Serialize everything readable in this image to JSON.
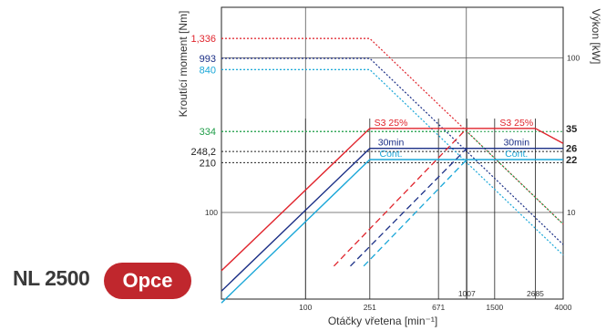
{
  "header": {
    "model": "NL 2500",
    "option_label": "Opce"
  },
  "colors": {
    "red": "#e0242c",
    "navy": "#1b2f86",
    "blue": "#2a5fb0",
    "cyan": "#1aa7d8",
    "green": "#1f9d48",
    "grid": "#222222",
    "badge": "#c0272d"
  },
  "chart_data": {
    "type": "line",
    "xlabel": "Otáčky vřetena [min⁻¹]",
    "ylabel_left": "Kroutící moment [Nm]",
    "ylabel_right": "Výkon [kW]",
    "x_scale": "log",
    "xlim": [
      30,
      4000
    ],
    "y_left_scale": "log",
    "y_right_scale": "log",
    "x_ticks": [
      100,
      251,
      671,
      1007,
      1500,
      2685,
      4000
    ],
    "y_left_ticks": [
      100
    ],
    "y_right_ticks": [
      10,
      100
    ],
    "torque_levels": [
      {
        "label": "1,336",
        "value": 1336,
        "color": "red"
      },
      {
        "label": "993",
        "value": 993,
        "color": "navy"
      },
      {
        "label": "840",
        "value": 840,
        "color": "cyan"
      },
      {
        "label": "334",
        "value": 334,
        "color": "green"
      },
      {
        "label": "248,2",
        "value": 248.2,
        "color": "black"
      },
      {
        "label": "210",
        "value": 210,
        "color": "black"
      }
    ],
    "power_levels": [
      {
        "label": "35",
        "value": 35
      },
      {
        "label": "26",
        "value": 26
      },
      {
        "label": "22",
        "value": 22
      }
    ],
    "torque_series": [
      {
        "color": "red",
        "points": [
          [
            30,
            1336
          ],
          [
            251,
            1336
          ],
          [
            671,
            500
          ],
          [
            1007,
            334
          ],
          [
            4000,
            84
          ]
        ]
      },
      {
        "color": "navy",
        "points": [
          [
            30,
            993
          ],
          [
            251,
            993
          ],
          [
            1007,
            248.2
          ],
          [
            4000,
            62
          ]
        ]
      },
      {
        "color": "cyan",
        "points": [
          [
            30,
            840
          ],
          [
            251,
            840
          ],
          [
            1007,
            210
          ],
          [
            4000,
            53
          ]
        ]
      },
      {
        "color": "green",
        "points": [
          [
            30,
            334
          ],
          [
            1007,
            334
          ],
          [
            4000,
            84
          ]
        ]
      }
    ],
    "power_series": [
      {
        "name": "S3 25%",
        "color": "red",
        "points": [
          [
            30,
            4.2
          ],
          [
            251,
            35
          ],
          [
            671,
            35
          ],
          [
            1007,
            35
          ],
          [
            2685,
            35
          ],
          [
            4000,
            28
          ]
        ]
      },
      {
        "name": "30min",
        "color": "navy",
        "points": [
          [
            30,
            3.1
          ],
          [
            251,
            26
          ],
          [
            4000,
            26
          ]
        ]
      },
      {
        "name": "Cont.",
        "color": "cyan",
        "points": [
          [
            30,
            2.6
          ],
          [
            251,
            22
          ],
          [
            4000,
            22
          ]
        ]
      }
    ],
    "dashed_power_series": [
      {
        "color": "red",
        "points": [
          [
            150,
            4.5
          ],
          [
            1007,
            35
          ]
        ]
      },
      {
        "color": "navy",
        "points": [
          [
            190,
            4.5
          ],
          [
            1007,
            26
          ]
        ]
      },
      {
        "color": "cyan",
        "points": [
          [
            230,
            4.5
          ],
          [
            1007,
            22
          ]
        ]
      }
    ]
  }
}
